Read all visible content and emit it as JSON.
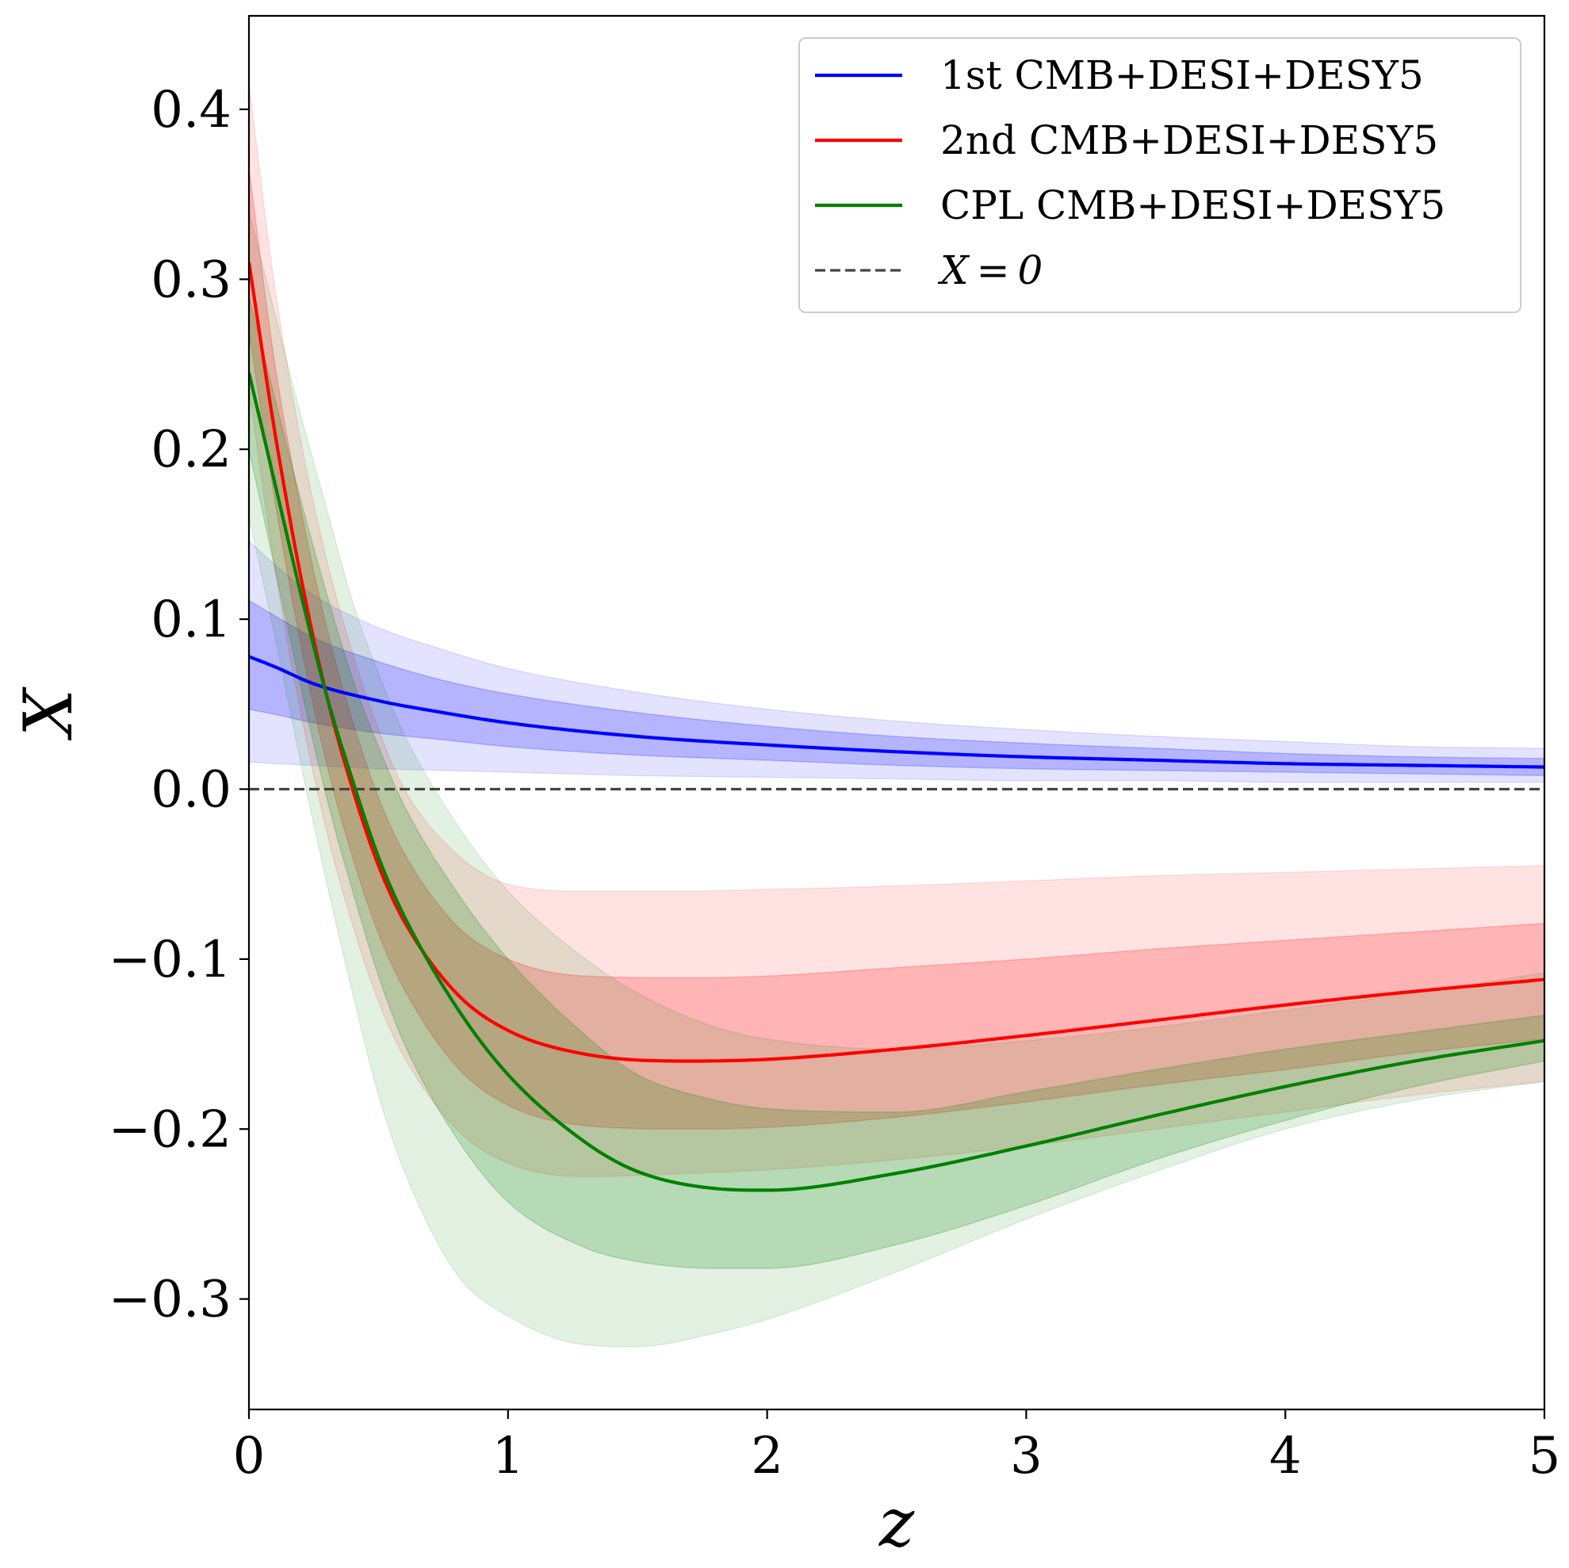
{
  "chart_data": {
    "type": "line",
    "title": "",
    "xlabel": "z",
    "ylabel": "X",
    "xlim": [
      0,
      5
    ],
    "ylim": [
      -0.365,
      0.455
    ],
    "grid": false,
    "legend_position": "top-right",
    "x_ticks": [
      0,
      1,
      2,
      3,
      4,
      5
    ],
    "x_tick_labels": [
      "0",
      "1",
      "2",
      "3",
      "4",
      "5"
    ],
    "y_ticks": [
      -0.3,
      -0.2,
      -0.1,
      0.0,
      0.1,
      0.2,
      0.3,
      0.4
    ],
    "y_tick_labels": [
      "−0.3",
      "−0.2",
      "−0.1",
      "0.0",
      "0.1",
      "0.2",
      "0.3",
      "0.4"
    ],
    "series": [
      {
        "name": "1st CMB+DESI+DESY5",
        "color": "#0000ff",
        "x": [
          0,
          0.1,
          0.25,
          0.5,
          0.75,
          1.0,
          1.5,
          2.0,
          2.5,
          3.0,
          3.5,
          4.0,
          4.5,
          5.0
        ],
        "values": [
          0.078,
          0.072,
          0.062,
          0.052,
          0.045,
          0.039,
          0.031,
          0.026,
          0.022,
          0.019,
          0.017,
          0.015,
          0.014,
          0.013
        ],
        "band1_lo": [
          0.047,
          0.044,
          0.039,
          0.033,
          0.029,
          0.025,
          0.02,
          0.017,
          0.014,
          0.012,
          0.011,
          0.01,
          0.009,
          0.008
        ],
        "band1_hi": [
          0.111,
          0.102,
          0.089,
          0.075,
          0.064,
          0.056,
          0.045,
          0.037,
          0.031,
          0.027,
          0.024,
          0.021,
          0.019,
          0.018
        ],
        "band2_lo": [
          0.016,
          0.015,
          0.014,
          0.012,
          0.011,
          0.01,
          0.008,
          0.007,
          0.006,
          0.005,
          0.005,
          0.004,
          0.004,
          0.004
        ],
        "band2_hi": [
          0.146,
          0.132,
          0.114,
          0.095,
          0.082,
          0.071,
          0.057,
          0.047,
          0.04,
          0.035,
          0.031,
          0.028,
          0.025,
          0.024
        ]
      },
      {
        "name": "2nd CMB+DESI+DESY5",
        "color": "#ff0000",
        "x": [
          0,
          0.1,
          0.2,
          0.3,
          0.4,
          0.5,
          0.6,
          0.8,
          1.0,
          1.3,
          1.7,
          2.0,
          2.5,
          3.0,
          3.5,
          4.0,
          4.5,
          5.0
        ],
        "values": [
          0.31,
          0.21,
          0.125,
          0.055,
          0.0,
          -0.045,
          -0.078,
          -0.12,
          -0.142,
          -0.156,
          -0.16,
          -0.159,
          -0.153,
          -0.145,
          -0.136,
          -0.127,
          -0.119,
          -0.112
        ],
        "band1_lo": [
          0.27,
          0.17,
          0.085,
          0.015,
          -0.04,
          -0.085,
          -0.118,
          -0.163,
          -0.186,
          -0.198,
          -0.2,
          -0.199,
          -0.193,
          -0.184,
          -0.174,
          -0.165,
          -0.155,
          -0.147
        ],
        "band1_hi": [
          0.365,
          0.25,
          0.165,
          0.095,
          0.04,
          -0.005,
          -0.038,
          -0.08,
          -0.1,
          -0.11,
          -0.111,
          -0.11,
          -0.105,
          -0.1,
          -0.094,
          -0.089,
          -0.084,
          -0.079
        ],
        "band2_lo": [
          0.235,
          0.13,
          0.045,
          -0.025,
          -0.08,
          -0.125,
          -0.158,
          -0.2,
          -0.22,
          -0.228,
          -0.226,
          -0.224,
          -0.218,
          -0.21,
          -0.2,
          -0.19,
          -0.18,
          -0.172
        ],
        "band2_hi": [
          0.415,
          0.295,
          0.205,
          0.135,
          0.08,
          0.035,
          0.0,
          -0.038,
          -0.056,
          -0.06,
          -0.06,
          -0.059,
          -0.057,
          -0.054,
          -0.051,
          -0.049,
          -0.047,
          -0.045
        ]
      },
      {
        "name": "CPL CMB+DESI+DESY5",
        "color": "#008000",
        "x": [
          0,
          0.1,
          0.2,
          0.3,
          0.4,
          0.5,
          0.6,
          0.8,
          1.0,
          1.3,
          1.5,
          1.8,
          2.0,
          2.5,
          3.0,
          3.5,
          4.0,
          4.5,
          5.0
        ],
        "values": [
          0.245,
          0.18,
          0.115,
          0.055,
          0.005,
          -0.04,
          -0.075,
          -0.128,
          -0.168,
          -0.208,
          -0.225,
          -0.235,
          -0.236,
          -0.226,
          -0.21,
          -0.192,
          -0.175,
          -0.16,
          -0.148
        ],
        "band1_lo": [
          0.2,
          0.13,
          0.06,
          -0.005,
          -0.06,
          -0.11,
          -0.15,
          -0.205,
          -0.243,
          -0.27,
          -0.278,
          -0.282,
          -0.282,
          -0.268,
          -0.245,
          -0.218,
          -0.195,
          -0.175,
          -0.16
        ],
        "band1_hi": [
          0.29,
          0.23,
          0.17,
          0.115,
          0.065,
          0.025,
          -0.01,
          -0.06,
          -0.1,
          -0.145,
          -0.168,
          -0.183,
          -0.188,
          -0.19,
          -0.178,
          -0.165,
          -0.153,
          -0.143,
          -0.133
        ],
        "band2_lo": [
          0.16,
          0.09,
          0.015,
          -0.055,
          -0.12,
          -0.18,
          -0.225,
          -0.285,
          -0.31,
          -0.327,
          -0.328,
          -0.32,
          -0.312,
          -0.284,
          -0.253,
          -0.225,
          -0.2,
          -0.183,
          -0.172
        ],
        "band2_hi": [
          0.34,
          0.28,
          0.22,
          0.165,
          0.11,
          0.068,
          0.032,
          -0.02,
          -0.06,
          -0.1,
          -0.12,
          -0.14,
          -0.147,
          -0.153,
          -0.148,
          -0.14,
          -0.13,
          -0.12,
          -0.108
        ]
      }
    ],
    "reference_line": {
      "name": "X = 0",
      "label_math": "X = 0",
      "y": 0,
      "style": "dashed",
      "color": "#444444"
    }
  }
}
